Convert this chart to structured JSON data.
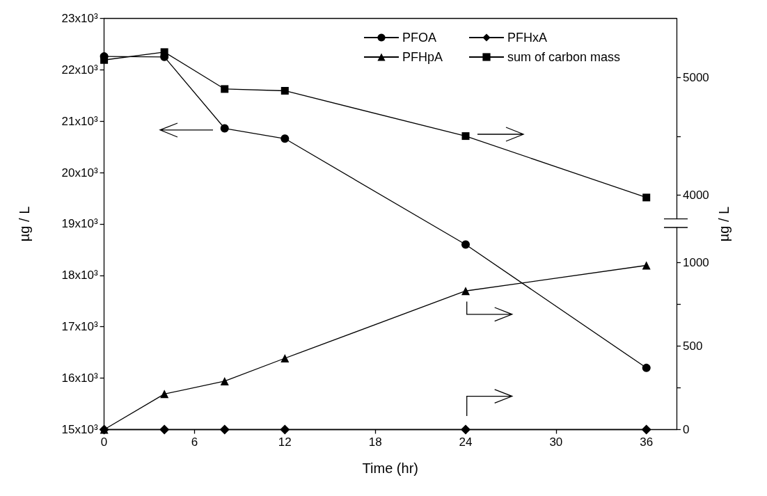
{
  "chart_data": {
    "type": "line",
    "xlabel": "Time (hr)",
    "ylabel": "µg / L",
    "y2label": "µg / L",
    "x": [
      0,
      4,
      8,
      12,
      24,
      36
    ],
    "series": [
      {
        "name": "PFOA",
        "color": "#000000",
        "marker": "circle",
        "values": [
          22260,
          22250,
          20860,
          20660,
          18600,
          16200
        ]
      },
      {
        "name": "PFHxA",
        "color": "#000000",
        "marker": "diamond",
        "axis": "y2",
        "values": [
          0,
          0,
          0,
          0,
          0,
          0
        ]
      },
      {
        "name": "PFHpA",
        "color": "#000000",
        "marker": "triangle",
        "axis": "y2",
        "values": [
          0,
          213,
          290,
          427,
          830,
          983
        ]
      },
      {
        "name": "sum of carbon mass",
        "color": "#000000",
        "marker": "square",
        "axis": "y3",
        "values": [
          5147,
          5214,
          4901,
          4886,
          4502,
          3981
        ]
      }
    ],
    "xlim": [
      0,
      38
    ],
    "xticks": [
      0,
      6,
      12,
      18,
      24,
      30,
      36
    ],
    "ylim": [
      15000,
      23000
    ],
    "yticks": [
      {
        "value": 15000,
        "label": "15x10³"
      },
      {
        "value": 16000,
        "label": "16x10³"
      },
      {
        "value": 17000,
        "label": "17x10³"
      },
      {
        "value": 18000,
        "label": "18x10³"
      },
      {
        "value": 19000,
        "label": "19x10³"
      },
      {
        "value": 20000,
        "label": "20x10³"
      },
      {
        "value": 21000,
        "label": "21x10³"
      },
      {
        "value": 22000,
        "label": "22x10³"
      },
      {
        "value": 23000,
        "label": "23x10³"
      }
    ],
    "y2lim": [
      0,
      1210
    ],
    "y2ticks": [
      0,
      {
        "value": 250,
        "label": null
      },
      500,
      {
        "value": 750,
        "label": null
      },
      1000
    ],
    "y3lim": [
      3800,
      5500
    ],
    "y3ticks": [
      4000,
      {
        "value": 4500,
        "label": null
      },
      5000
    ],
    "line_style": "solid",
    "grid": false,
    "legend": "top right"
  }
}
